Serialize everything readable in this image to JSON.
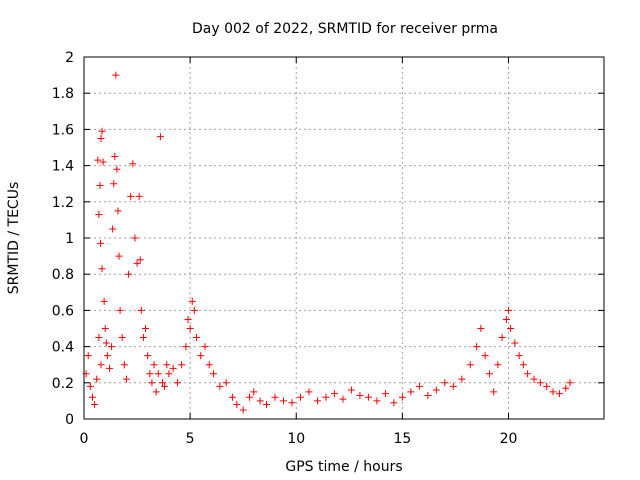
{
  "chart_data": {
    "type": "scatter",
    "title": "Day 002 of 2022, SRMTID for receiver prma",
    "xlabel": "GPS time / hours",
    "ylabel": "SRMTID / TECUs",
    "xlim": [
      0,
      24.5
    ],
    "ylim": [
      0,
      2
    ],
    "x_ticks": [
      0,
      5,
      10,
      15,
      20
    ],
    "x_tick_labels": [
      "0",
      "5",
      "10",
      "15",
      "20"
    ],
    "y_ticks": [
      0,
      0.2,
      0.4,
      0.6,
      0.8,
      1,
      1.2,
      1.4,
      1.6,
      1.8,
      2
    ],
    "y_tick_labels": [
      "0",
      "0.2",
      "0.4",
      "0.6",
      "0.8",
      "1",
      "1.2",
      "1.4",
      "1.6",
      "1.8",
      "2"
    ],
    "grid": true,
    "marker": "+",
    "color": "#ff0000",
    "series": [
      {
        "name": "SRMTID",
        "points": [
          [
            0.1,
            0.25
          ],
          [
            0.2,
            0.35
          ],
          [
            0.3,
            0.18
          ],
          [
            0.4,
            0.12
          ],
          [
            0.5,
            0.08
          ],
          [
            0.6,
            0.22
          ],
          [
            0.7,
            0.45
          ],
          [
            0.8,
            0.3
          ],
          [
            0.65,
            1.43
          ],
          [
            0.75,
            1.29
          ],
          [
            0.8,
            1.55
          ],
          [
            0.85,
            1.59
          ],
          [
            0.9,
            1.42
          ],
          [
            0.7,
            1.13
          ],
          [
            0.78,
            0.97
          ],
          [
            0.85,
            0.83
          ],
          [
            0.95,
            0.65
          ],
          [
            1.0,
            0.5
          ],
          [
            1.05,
            0.42
          ],
          [
            1.1,
            0.35
          ],
          [
            1.2,
            0.28
          ],
          [
            1.3,
            0.4
          ],
          [
            1.35,
            1.05
          ],
          [
            1.4,
            1.3
          ],
          [
            1.45,
            1.45
          ],
          [
            1.5,
            1.9
          ],
          [
            1.55,
            1.38
          ],
          [
            1.6,
            1.15
          ],
          [
            1.65,
            0.9
          ],
          [
            1.7,
            0.6
          ],
          [
            1.8,
            0.45
          ],
          [
            1.9,
            0.3
          ],
          [
            2.0,
            0.22
          ],
          [
            2.1,
            0.8
          ],
          [
            2.2,
            1.23
          ],
          [
            2.3,
            1.41
          ],
          [
            2.4,
            1.0
          ],
          [
            2.5,
            0.86
          ],
          [
            2.6,
            1.23
          ],
          [
            2.65,
            0.88
          ],
          [
            2.7,
            0.6
          ],
          [
            2.8,
            0.45
          ],
          [
            2.9,
            0.5
          ],
          [
            3.0,
            0.35
          ],
          [
            3.1,
            0.25
          ],
          [
            3.2,
            0.2
          ],
          [
            3.3,
            0.3
          ],
          [
            3.4,
            0.15
          ],
          [
            3.5,
            0.25
          ],
          [
            3.6,
            1.56
          ],
          [
            3.7,
            0.2
          ],
          [
            3.8,
            0.18
          ],
          [
            3.9,
            0.3
          ],
          [
            4.0,
            0.25
          ],
          [
            4.2,
            0.28
          ],
          [
            4.4,
            0.2
          ],
          [
            4.6,
            0.3
          ],
          [
            4.8,
            0.4
          ],
          [
            4.9,
            0.55
          ],
          [
            5.0,
            0.5
          ],
          [
            5.1,
            0.65
          ],
          [
            5.2,
            0.6
          ],
          [
            5.3,
            0.45
          ],
          [
            5.5,
            0.35
          ],
          [
            5.7,
            0.4
          ],
          [
            5.9,
            0.3
          ],
          [
            6.1,
            0.25
          ],
          [
            6.4,
            0.18
          ],
          [
            6.7,
            0.2
          ],
          [
            7.0,
            0.12
          ],
          [
            7.2,
            0.08
          ],
          [
            7.5,
            0.05
          ],
          [
            7.8,
            0.12
          ],
          [
            8.0,
            0.15
          ],
          [
            8.3,
            0.1
          ],
          [
            8.6,
            0.08
          ],
          [
            9.0,
            0.12
          ],
          [
            9.4,
            0.1
          ],
          [
            9.8,
            0.09
          ],
          [
            10.2,
            0.12
          ],
          [
            10.6,
            0.15
          ],
          [
            11.0,
            0.1
          ],
          [
            11.4,
            0.12
          ],
          [
            11.8,
            0.14
          ],
          [
            12.2,
            0.11
          ],
          [
            12.6,
            0.16
          ],
          [
            13.0,
            0.13
          ],
          [
            13.4,
            0.12
          ],
          [
            13.8,
            0.1
          ],
          [
            14.2,
            0.14
          ],
          [
            14.6,
            0.09
          ],
          [
            15.0,
            0.12
          ],
          [
            15.4,
            0.15
          ],
          [
            15.8,
            0.18
          ],
          [
            16.2,
            0.13
          ],
          [
            16.6,
            0.16
          ],
          [
            17.0,
            0.2
          ],
          [
            17.4,
            0.18
          ],
          [
            17.8,
            0.22
          ],
          [
            18.2,
            0.3
          ],
          [
            18.5,
            0.4
          ],
          [
            18.7,
            0.5
          ],
          [
            18.9,
            0.35
          ],
          [
            19.1,
            0.25
          ],
          [
            19.3,
            0.15
          ],
          [
            19.5,
            0.3
          ],
          [
            19.7,
            0.45
          ],
          [
            19.9,
            0.55
          ],
          [
            20.0,
            0.6
          ],
          [
            20.1,
            0.5
          ],
          [
            20.3,
            0.42
          ],
          [
            20.5,
            0.35
          ],
          [
            20.7,
            0.3
          ],
          [
            20.9,
            0.25
          ],
          [
            21.2,
            0.22
          ],
          [
            21.5,
            0.2
          ],
          [
            21.8,
            0.18
          ],
          [
            22.1,
            0.15
          ],
          [
            22.4,
            0.14
          ],
          [
            22.7,
            0.17
          ],
          [
            22.9,
            0.2
          ]
        ]
      }
    ]
  }
}
